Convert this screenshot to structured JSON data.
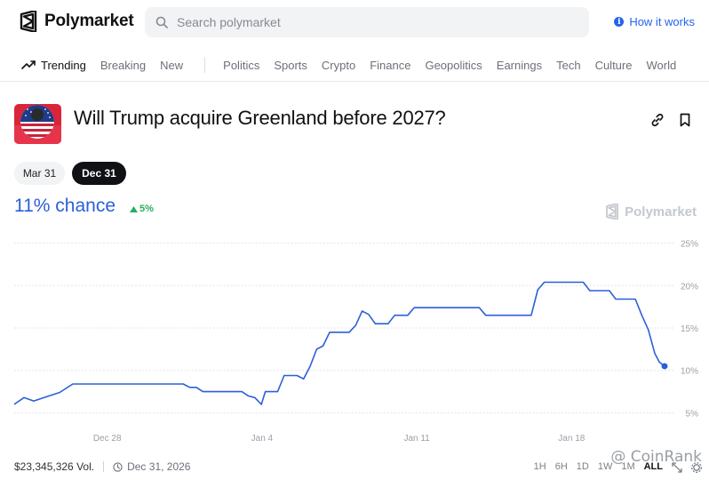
{
  "header": {
    "brand": "Polymarket",
    "search_placeholder": "Search polymarket",
    "how_it_works": "How it works",
    "icons": [
      "polymarket-logo-icon",
      "search-icon",
      "info-icon"
    ]
  },
  "nav": {
    "trending": "Trending",
    "primary": [
      "Breaking",
      "New"
    ],
    "categories": [
      "Politics",
      "Sports",
      "Crypto",
      "Finance",
      "Geopolitics",
      "Earnings",
      "Tech",
      "Culture",
      "World"
    ]
  },
  "market": {
    "title": "Will Trump acquire Greenland before 2027?",
    "tabs": [
      {
        "label": "Mar 31",
        "active": false
      },
      {
        "label": "Dec 31",
        "active": true
      }
    ],
    "chance": "11% chance",
    "delta": "5%",
    "watermark": "Polymarket",
    "volume": "$23,345,326 Vol.",
    "end_date": "Dec 31, 2026",
    "ranges": [
      "1H",
      "6H",
      "1D",
      "1W",
      "1M",
      "ALL"
    ],
    "active_range": "ALL",
    "overlay_watermark": "@ CoinRank",
    "colors": {
      "line": "#2b5fd9",
      "up": "#27ae60",
      "accent": "#2563eb"
    }
  },
  "chart_data": {
    "type": "line",
    "x_tick_labels": [
      "Dec 28",
      "Jan 4",
      "Jan 11",
      "Jan 18"
    ],
    "y_tick_labels": [
      "5%",
      "10%",
      "15%",
      "20%",
      "25%"
    ],
    "ylim": [
      4,
      26
    ],
    "xlim": [
      0,
      100
    ],
    "x_ticks_at": [
      14.3,
      38.1,
      61.9,
      85.7
    ],
    "series": [
      {
        "x": [
          0,
          1.5,
          3,
          5,
          7,
          9,
          10,
          11,
          12,
          13,
          14,
          16,
          18,
          20,
          22,
          24,
          25,
          26,
          27,
          28,
          29,
          30,
          31,
          32,
          33,
          34,
          35,
          36,
          37,
          38,
          38.6,
          39.5,
          40.5,
          41.5,
          42.5,
          43.5,
          44.5,
          45.5,
          46.5,
          47.5,
          48.5,
          49.5,
          50.5,
          51.5,
          52.5,
          53.5,
          54.5,
          55.5,
          56.5,
          57.5,
          58.5,
          59.5,
          60.5,
          61.5,
          62.5,
          63.5,
          64.5,
          65.5,
          66.5,
          67.5,
          68.5,
          69.5,
          70.5,
          71.5,
          72.5,
          73.5,
          74.5,
          75.5,
          76.5,
          77.5,
          78.5,
          79.5,
          80.5,
          81.5,
          82.5,
          83.5,
          84.5,
          85.5,
          86.5,
          87.5,
          88.5,
          89.5,
          90.5,
          91.5,
          92.5,
          93.5,
          94.5,
          95.5,
          96.5,
          97.5,
          98.5,
          99.2,
          100
        ],
        "y": [
          6,
          6.8,
          6.4,
          6.9,
          7.4,
          8.4,
          8.4,
          8.4,
          8.4,
          8.4,
          8.4,
          8.4,
          8.4,
          8.4,
          8.4,
          8.4,
          8.4,
          8.4,
          8,
          8,
          7.5,
          7.5,
          7.5,
          7.5,
          7.5,
          7.5,
          7.5,
          7,
          6.8,
          6,
          7.5,
          7.5,
          7.5,
          9.4,
          9.4,
          9.4,
          9.0,
          10.5,
          12.5,
          12.9,
          14.5,
          14.5,
          14.5,
          14.5,
          15.3,
          17,
          16.6,
          15.5,
          15.5,
          15.5,
          16.5,
          16.5,
          16.5,
          17.4,
          17.4,
          17.4,
          17.4,
          17.4,
          17.4,
          17.4,
          17.4,
          17.4,
          17.4,
          17.4,
          16.5,
          16.5,
          16.5,
          16.5,
          16.5,
          16.5,
          16.5,
          16.5,
          19.5,
          20.4,
          20.4,
          20.4,
          20.4,
          20.4,
          20.4,
          20.4,
          19.4,
          19.4,
          19.4,
          19.4,
          18.4,
          18.4,
          18.4,
          18.4,
          16.5,
          14.8,
          12,
          11,
          10.5
        ]
      }
    ]
  }
}
